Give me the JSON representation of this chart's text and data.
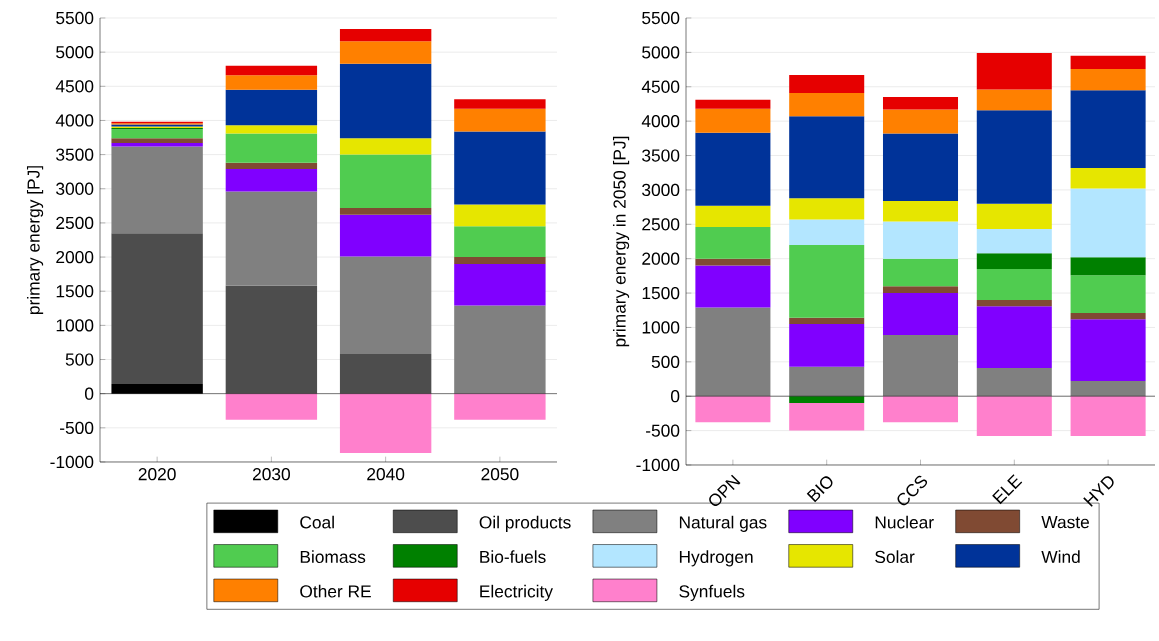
{
  "chart_data": [
    {
      "type": "bar",
      "stacked": true,
      "categories": [
        "2020",
        "2030",
        "2040",
        "2050"
      ],
      "ylabel": "primary energy [PJ]",
      "ylim": [
        -1000,
        5500
      ],
      "yticks": [
        -1000,
        -500,
        0,
        500,
        1000,
        1500,
        2000,
        2500,
        3000,
        3500,
        4000,
        4500,
        5000,
        5500
      ],
      "grid": "y",
      "legend": "bottom",
      "ref_lines": [
        {
          "axis": "y",
          "value": 0,
          "color": "#000000"
        }
      ],
      "series": [
        {
          "name": "Coal",
          "color": "#000000",
          "values": [
            140,
            0,
            0,
            0
          ]
        },
        {
          "name": "Oil products",
          "color": "#4d4d4d",
          "values": [
            2210,
            1580,
            580,
            0
          ]
        },
        {
          "name": "Natural gas",
          "color": "#808080",
          "values": [
            1270,
            1380,
            1430,
            1290
          ]
        },
        {
          "name": "Nuclear",
          "color": "#8000ff",
          "values": [
            50,
            330,
            610,
            610
          ]
        },
        {
          "name": "Waste",
          "color": "#804a33",
          "values": [
            70,
            90,
            100,
            100
          ]
        },
        {
          "name": "Biomass",
          "color": "#50cc50",
          "values": [
            130,
            430,
            780,
            450
          ]
        },
        {
          "name": "Bio-fuels",
          "color": "#008000",
          "values": [
            20,
            0,
            0,
            0
          ]
        },
        {
          "name": "Hydrogen",
          "color": "#b3e6ff",
          "values": [
            0,
            0,
            0,
            0
          ]
        },
        {
          "name": "Solar",
          "color": "#e6e600",
          "values": [
            20,
            120,
            240,
            320
          ]
        },
        {
          "name": "Wind",
          "color": "#003399",
          "values": [
            30,
            520,
            1090,
            1070
          ]
        },
        {
          "name": "Other RE",
          "color": "#ff8000",
          "values": [
            20,
            210,
            330,
            330
          ]
        },
        {
          "name": "Electricity",
          "color": "#e60000",
          "values": [
            20,
            140,
            180,
            140
          ]
        },
        {
          "name": "Synfuels",
          "color": "#ff80cc",
          "values": [
            0,
            -380,
            -870,
            -380
          ]
        }
      ]
    },
    {
      "type": "bar",
      "stacked": true,
      "categories": [
        "OPN",
        "BIO",
        "CCS",
        "ELE",
        "HYD"
      ],
      "ylabel": "primary energy in 2050 [PJ]",
      "ylim": [
        -1000,
        5500
      ],
      "yticks": [
        -1000,
        -500,
        0,
        500,
        1000,
        1500,
        2000,
        2500,
        3000,
        3500,
        4000,
        4500,
        5000,
        5500
      ],
      "grid": "y",
      "ref_lines": [
        {
          "axis": "y",
          "value": 0,
          "color": "#000000"
        }
      ],
      "series": [
        {
          "color": "#808080",
          "values": [
            1290,
            430,
            890,
            410,
            220
          ]
        },
        {
          "color": "#8000ff",
          "values": [
            610,
            620,
            610,
            900,
            900
          ]
        },
        {
          "color": "#804a33",
          "values": [
            100,
            90,
            100,
            90,
            90
          ]
        },
        {
          "color": "#50cc50",
          "values": [
            460,
            1060,
            400,
            450,
            550
          ]
        },
        {
          "color": "#008000",
          "values": [
            0,
            -100,
            0,
            230,
            260
          ]
        },
        {
          "color": "#b3e6ff",
          "values": [
            0,
            370,
            540,
            350,
            1000
          ]
        },
        {
          "color": "#e6e600",
          "values": [
            310,
            310,
            300,
            370,
            300
          ]
        },
        {
          "color": "#003399",
          "values": [
            1060,
            1190,
            980,
            1360,
            1130
          ]
        },
        {
          "color": "#ff8000",
          "values": [
            350,
            340,
            350,
            300,
            310
          ]
        },
        {
          "color": "#e60000",
          "values": [
            130,
            260,
            180,
            530,
            190
          ]
        },
        {
          "color": "#ff80cc",
          "values": [
            -380,
            -400,
            -380,
            -580,
            -580
          ]
        }
      ]
    }
  ]
}
